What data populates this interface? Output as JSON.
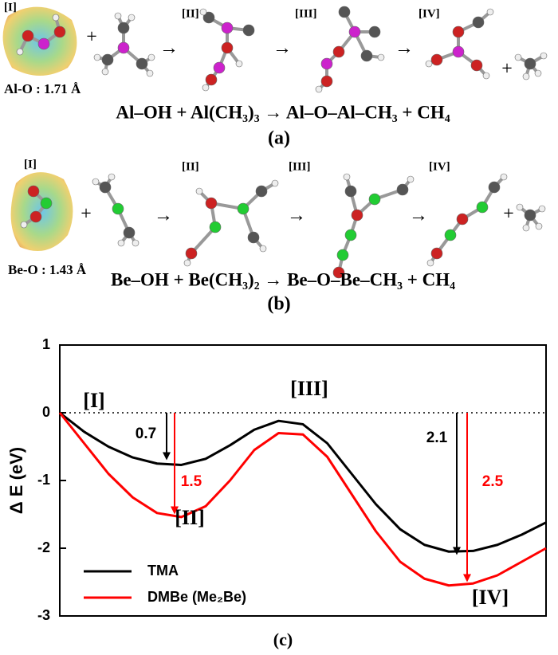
{
  "panel_a": {
    "stages": [
      "[I]",
      "[II]",
      "[III]",
      "[IV]"
    ],
    "operators": [
      "+",
      "→",
      "→",
      "→",
      "+"
    ],
    "bond": "Al-O : 1.71 Å",
    "equation": "Al–OH + Al(CH₃)₃ → Al–O–Al–CH₃ + CH₄",
    "caption": "(a)"
  },
  "panel_b": {
    "stages": [
      "[I]",
      "[II]",
      "[III]",
      "[IV]"
    ],
    "operators": [
      "+",
      "→",
      "→",
      "→",
      "+"
    ],
    "bond": "Be-O : 1.43 Å",
    "equation": "Be–OH + Be(CH₃)₂ → Be–O–Be–CH₃ + CH₄",
    "caption": "(b)"
  },
  "chart_data": {
    "type": "line",
    "caption": "(c)",
    "y_label": "Δ E (eV)",
    "x": [
      0,
      0.5,
      1,
      1.5,
      2,
      2.5,
      3,
      3.5,
      4,
      4.5,
      5,
      5.5,
      6,
      6.5,
      7,
      7.5,
      8,
      8.5,
      9,
      9.5,
      10
    ],
    "xlim": [
      0,
      10
    ],
    "ylim": [
      -3,
      1
    ],
    "yticks": [
      -3,
      -2,
      -1,
      0,
      1
    ],
    "series": [
      {
        "name": "TMA",
        "color": "#000000",
        "values": [
          0,
          -0.28,
          -0.5,
          -0.66,
          -0.75,
          -0.77,
          -0.68,
          -0.48,
          -0.25,
          -0.12,
          -0.17,
          -0.45,
          -0.9,
          -1.35,
          -1.72,
          -1.95,
          -2.05,
          -2.04,
          -1.95,
          -1.8,
          -1.62
        ]
      },
      {
        "name": "DMBe (Me₂Be)",
        "color": "#ff0000",
        "values": [
          0,
          -0.45,
          -0.9,
          -1.25,
          -1.48,
          -1.54,
          -1.38,
          -1.0,
          -0.55,
          -0.3,
          -0.32,
          -0.65,
          -1.2,
          -1.75,
          -2.2,
          -2.45,
          -2.55,
          -2.52,
          -2.4,
          -2.2,
          -2.0
        ]
      }
    ],
    "stage_labels": [
      "[I]",
      "[II]",
      "[III]",
      "[IV]"
    ],
    "energy_drops": [
      {
        "value": 0.7,
        "color": "#000000"
      },
      {
        "value": 1.5,
        "color": "#ff0000"
      },
      {
        "value": 2.1,
        "color": "#000000"
      },
      {
        "value": 2.5,
        "color": "#ff0000"
      }
    ],
    "legend": "lower left"
  }
}
